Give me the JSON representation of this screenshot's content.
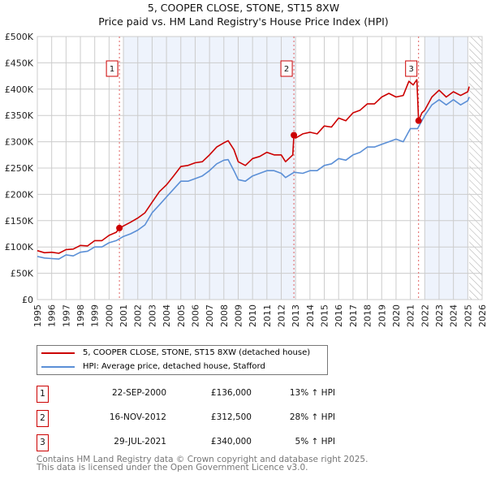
{
  "title": "5, COOPER CLOSE, STONE, ST15 8XW",
  "subtitle": "Price paid vs. HM Land Registry's House Price Index (HPI)",
  "colors": {
    "property": "#cc0000",
    "hpi": "#5b8fd6",
    "shade": "#eef3fc"
  },
  "chart_data": {
    "type": "line",
    "xlim": [
      1995,
      2026
    ],
    "ylim": [
      0,
      500000
    ],
    "x_ticks": [
      "1995",
      "1996",
      "1997",
      "1998",
      "1999",
      "2000",
      "2001",
      "2002",
      "2003",
      "2004",
      "2005",
      "2006",
      "2007",
      "2008",
      "2009",
      "2010",
      "2011",
      "2012",
      "2013",
      "2014",
      "2015",
      "2016",
      "2017",
      "2018",
      "2019",
      "2020",
      "2021",
      "2022",
      "2023",
      "2024",
      "2025",
      "2026"
    ],
    "y_ticks": [
      {
        "v": 0,
        "l": "£0"
      },
      {
        "v": 50000,
        "l": "£50K"
      },
      {
        "v": 100000,
        "l": "£100K"
      },
      {
        "v": 150000,
        "l": "£150K"
      },
      {
        "v": 200000,
        "l": "£200K"
      },
      {
        "v": 250000,
        "l": "£250K"
      },
      {
        "v": 300000,
        "l": "£300K"
      },
      {
        "v": 350000,
        "l": "£350K"
      },
      {
        "v": 400000,
        "l": "£400K"
      },
      {
        "v": 450000,
        "l": "£450K"
      },
      {
        "v": 500000,
        "l": "£500K"
      }
    ],
    "shaded_ranges": [
      [
        2001,
        2013
      ],
      [
        2022,
        2025
      ]
    ],
    "forecast_from": 2025.1,
    "series": [
      {
        "name": "5, COOPER CLOSE, STONE, ST15 8XW (detached house)",
        "key": "property",
        "x": [
          1995,
          1995.5,
          1996,
          1996.5,
          1997,
          1997.5,
          1998,
          1998.5,
          1999,
          1999.5,
          2000,
          2000.5,
          2000.72,
          2001,
          2001.5,
          2002,
          2002.5,
          2003,
          2003.5,
          2004,
          2004.5,
          2005,
          2005.5,
          2006,
          2006.5,
          2007,
          2007.5,
          2008,
          2008.3,
          2008.7,
          2009,
          2009.5,
          2010,
          2010.5,
          2011,
          2011.5,
          2012,
          2012.3,
          2012.8,
          2012.88,
          2013,
          2013.5,
          2014,
          2014.5,
          2015,
          2015.5,
          2016,
          2016.5,
          2017,
          2017.5,
          2018,
          2018.5,
          2019,
          2019.5,
          2020,
          2020.5,
          2020.9,
          2021.2,
          2021.45,
          2021.57,
          2021.8,
          2022,
          2022.5,
          2023,
          2023.5,
          2024,
          2024.5,
          2025,
          2025.1
        ],
        "y": [
          93000,
          89000,
          90000,
          88000,
          95000,
          96000,
          103000,
          102000,
          112000,
          112000,
          122000,
          128000,
          136000,
          140000,
          147000,
          155000,
          165000,
          185000,
          205000,
          218000,
          235000,
          253000,
          255000,
          260000,
          262000,
          275000,
          290000,
          298000,
          302000,
          285000,
          262000,
          255000,
          268000,
          272000,
          280000,
          275000,
          275000,
          262000,
          275000,
          312500,
          307000,
          315000,
          318000,
          315000,
          330000,
          328000,
          345000,
          340000,
          355000,
          360000,
          372000,
          372000,
          385000,
          392000,
          385000,
          388000,
          415000,
          408000,
          418000,
          340000,
          355000,
          360000,
          385000,
          398000,
          385000,
          395000,
          388000,
          395000,
          405000
        ]
      },
      {
        "name": "HPI: Average price, detached house, Stafford",
        "key": "hpi",
        "x": [
          1995,
          1995.5,
          1996,
          1996.5,
          1997,
          1997.5,
          1998,
          1998.5,
          1999,
          1999.5,
          2000,
          2000.5,
          2001,
          2001.5,
          2002,
          2002.5,
          2003,
          2003.5,
          2004,
          2004.5,
          2005,
          2005.5,
          2006,
          2006.5,
          2007,
          2007.5,
          2008,
          2008.3,
          2008.7,
          2009,
          2009.5,
          2010,
          2010.5,
          2011,
          2011.5,
          2012,
          2012.3,
          2012.9,
          2013.5,
          2014,
          2014.5,
          2015,
          2015.5,
          2016,
          2016.5,
          2017,
          2017.5,
          2018,
          2018.5,
          2019,
          2019.5,
          2020,
          2020.5,
          2021,
          2021.5,
          2022,
          2022.5,
          2023,
          2023.5,
          2024,
          2024.5,
          2025,
          2025.1
        ],
        "y": [
          82000,
          79000,
          78000,
          77000,
          85000,
          83000,
          90000,
          92000,
          100000,
          100000,
          108000,
          112000,
          120000,
          125000,
          132000,
          142000,
          165000,
          180000,
          195000,
          210000,
          225000,
          225000,
          230000,
          235000,
          245000,
          258000,
          265000,
          266000,
          245000,
          228000,
          225000,
          235000,
          240000,
          245000,
          245000,
          240000,
          232000,
          242000,
          240000,
          245000,
          245000,
          255000,
          258000,
          268000,
          265000,
          275000,
          280000,
          290000,
          290000,
          295000,
          300000,
          305000,
          300000,
          325000,
          325000,
          350000,
          370000,
          380000,
          370000,
          380000,
          370000,
          378000,
          385000
        ]
      }
    ],
    "sales": [
      {
        "label": "1",
        "x": 2000.72,
        "y": 136000,
        "date": "22-SEP-2000",
        "price": "£136,000",
        "hpi": "13% ↑ HPI"
      },
      {
        "label": "2",
        "x": 2012.88,
        "y": 312500,
        "date": "16-NOV-2012",
        "price": "£312,500",
        "hpi": "28% ↑ HPI"
      },
      {
        "label": "3",
        "x": 2021.57,
        "y": 340000,
        "date": "29-JUL-2021",
        "price": "£340,000",
        "hpi": "5% ↑ HPI"
      }
    ]
  },
  "legend": {
    "property": "5, COOPER CLOSE, STONE, ST15 8XW (detached house)",
    "hpi": "HPI: Average price, detached house, Stafford"
  },
  "footer": [
    "Contains HM Land Registry data © Crown copyright and database right 2025.",
    "This data is licensed under the Open Government Licence v3.0."
  ]
}
